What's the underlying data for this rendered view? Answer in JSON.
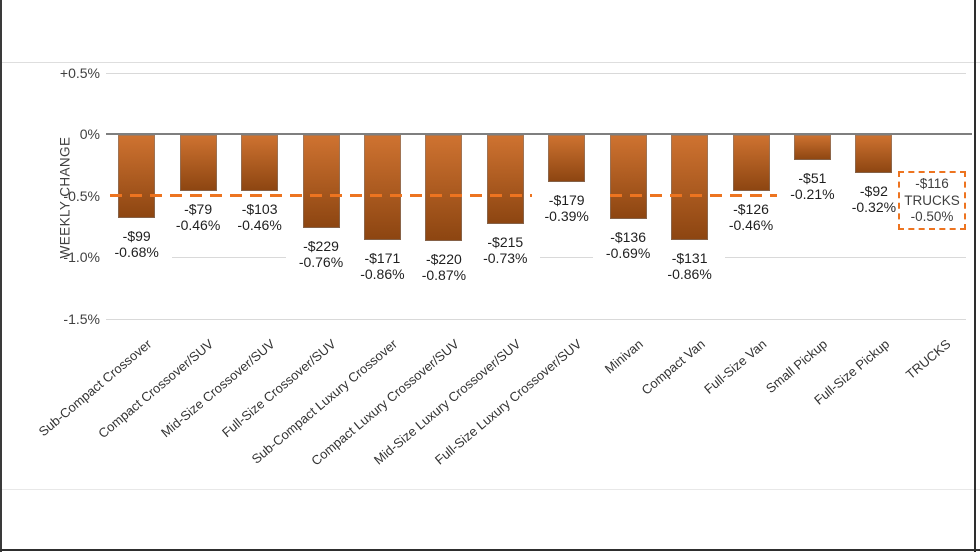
{
  "chart_data": {
    "type": "bar",
    "title": "",
    "xlabel": "",
    "ylabel": "WEEKLY CHANGE",
    "ylim": [
      -1.5,
      0.5
    ],
    "grid": true,
    "legend_position": "none",
    "y_ticks": [
      {
        "label": "+0.5%",
        "value": 0.5
      },
      {
        "label": "0%",
        "value": 0
      },
      {
        "label": "-0.5%",
        "value": -0.5
      },
      {
        "label": "-1.0%",
        "value": -1.0
      },
      {
        "label": "-1.5%",
        "value": -1.5
      }
    ],
    "categories": [
      "Sub-Compact Crossover",
      "Compact Crossover/SUV",
      "Mid-Size Crossover/SUV",
      "Full-Size Crossover/SUV",
      "Sub-Compact Luxury Crossover",
      "Compact Luxury Crossover/SUV",
      "Mid-Size Luxury Crossover/SUV",
      "Full-Size Luxury Crossover/SUV",
      "Minivan",
      "Compact Van",
      "Full-Size Van",
      "Small Pickup",
      "Full-Size Pickup",
      "TRUCKS"
    ],
    "series": [
      {
        "name": "Weekly change (%)",
        "values": [
          -0.68,
          -0.46,
          -0.46,
          -0.76,
          -0.86,
          -0.87,
          -0.73,
          -0.39,
          -0.69,
          -0.86,
          -0.46,
          -0.21,
          -0.32,
          null
        ]
      },
      {
        "name": "Weekly change ($)",
        "values": [
          -99,
          -79,
          -103,
          -229,
          -171,
          -220,
          -215,
          -179,
          -136,
          -131,
          -126,
          -51,
          -92,
          null
        ]
      }
    ],
    "bar_labels": [
      [
        "-$99",
        "-0.68%"
      ],
      [
        "-$79",
        "-0.46%"
      ],
      [
        "-$103",
        "-0.46%"
      ],
      [
        "-$229",
        "-0.76%"
      ],
      [
        "-$171",
        "-0.86%"
      ],
      [
        "-$220",
        "-0.87%"
      ],
      [
        "-$215",
        "-0.73%"
      ],
      [
        "-$179",
        "-0.39%"
      ],
      [
        "-$136",
        "-0.69%"
      ],
      [
        "-$131",
        "-0.86%"
      ],
      [
        "-$126",
        "-0.46%"
      ],
      [
        "-$51",
        "-0.21%"
      ],
      [
        "-$92",
        "-0.32%"
      ],
      null
    ],
    "reference_line": {
      "value": -0.5,
      "style": "dashed"
    },
    "annotation_box": {
      "category": "TRUCKS",
      "lines": [
        "-$116",
        "TRUCKS",
        "-0.50%"
      ],
      "values": {
        "dollar": -116,
        "percent": -0.5
      }
    }
  },
  "colors": {
    "bar_top": "#CF7331",
    "bar_bottom": "#8C4511",
    "reference": "#ED7420",
    "gridline": "#D9D9D9",
    "zero_axis": "#7F7F7F",
    "tick_text": "#404040",
    "value_text": "#1F1F1F",
    "category_text": "#333333",
    "frame": "#2E2E2E"
  }
}
